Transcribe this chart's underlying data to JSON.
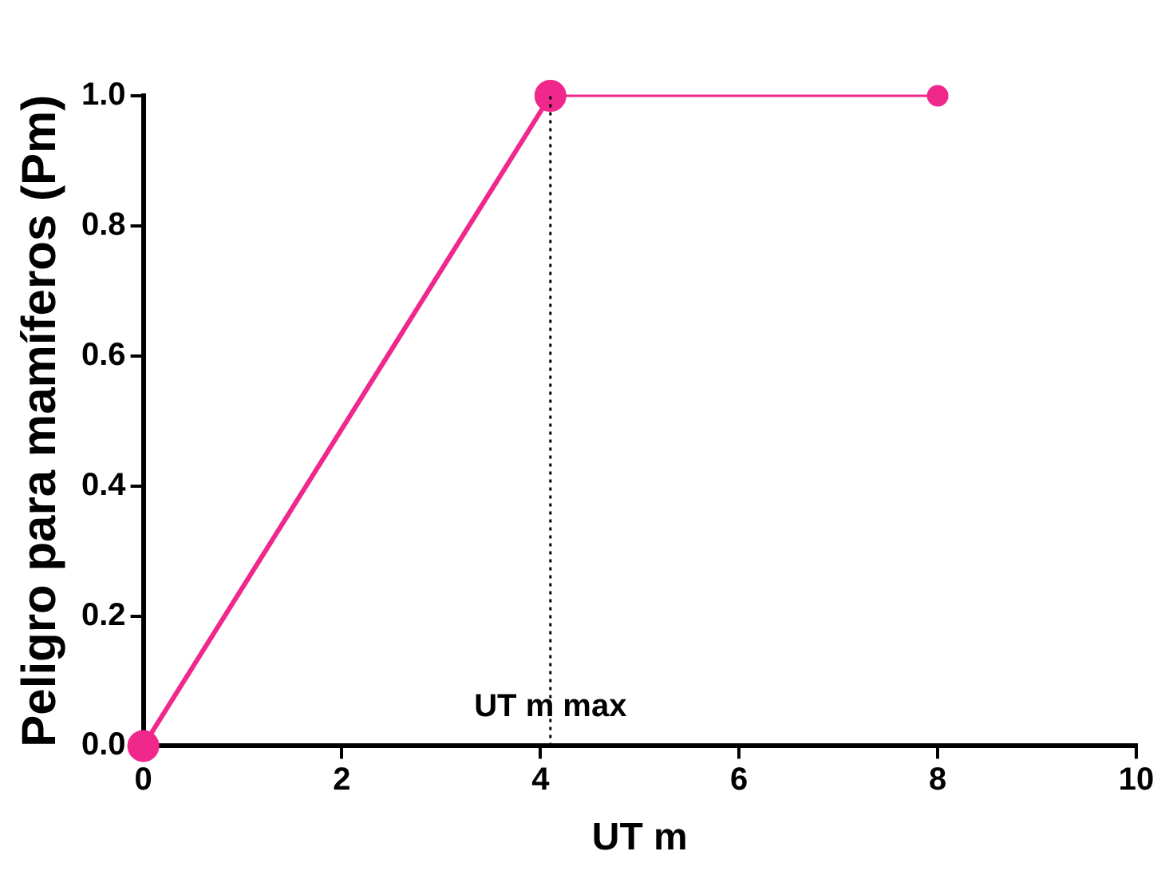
{
  "chart_data": {
    "type": "line",
    "xlabel": "UT m",
    "ylabel": "Peligro para mamíferos (Pm)",
    "series": [
      {
        "x": [
          0,
          4.1
        ],
        "values": [
          0,
          1.0
        ],
        "color": "#f0288c"
      },
      {
        "x": [
          4.1,
          8
        ],
        "values": [
          1.0,
          1.0
        ],
        "color": "#f0288c"
      }
    ],
    "xlim": [
      0,
      10
    ],
    "xticks": [
      0,
      2,
      4,
      6,
      8,
      10
    ],
    "ylim": [
      0,
      1
    ],
    "yticks": [
      {
        "value": 0,
        "label": "0.0"
      },
      {
        "value": 0.2,
        "label": "0.2"
      },
      {
        "value": 0.4,
        "label": "0.4"
      },
      {
        "value": 0.6,
        "label": "0.6"
      },
      {
        "value": 0.8,
        "label": "0.8"
      },
      {
        "value": 1,
        "label": "1.0"
      }
    ],
    "ref_lines": [
      {
        "axis": "x",
        "value": 4.1,
        "label": "UT m max",
        "line_style": "dotted",
        "color": "#000000"
      }
    ],
    "grid": false,
    "legend": false,
    "marker": "circle",
    "line_style": "solid"
  }
}
